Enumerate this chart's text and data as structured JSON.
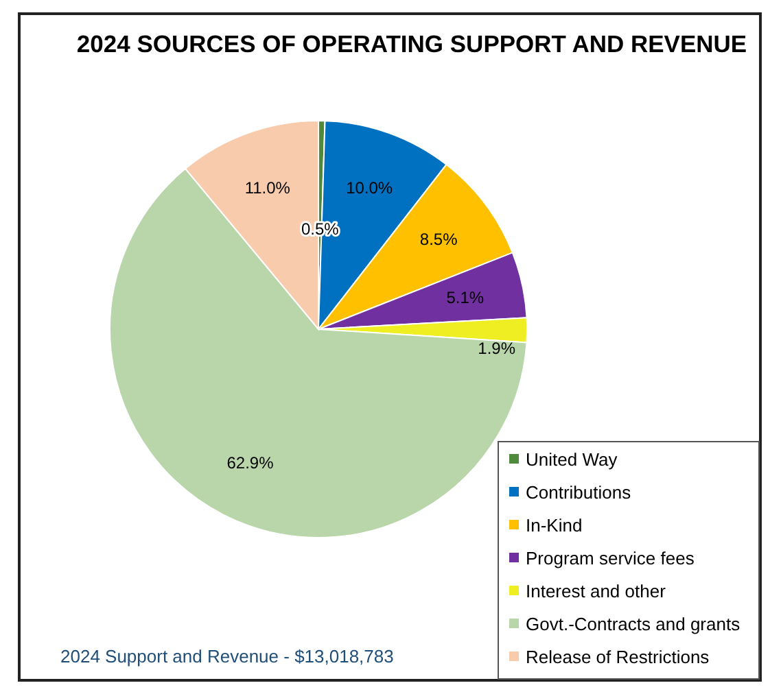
{
  "chart_data": {
    "type": "pie",
    "title": "2024 SOURCES OF OPERATING SUPPORT AND REVENUE",
    "categories": [
      "United Way",
      "Contributions",
      "In-Kind",
      "Program service fees",
      "Interest and other",
      "Govt.-Contracts and grants",
      "Release of Restrictions"
    ],
    "values": [
      0.5,
      10.0,
      8.5,
      5.1,
      1.9,
      62.9,
      11.0
    ],
    "colors": [
      "#4f8a3c",
      "#0070c0",
      "#ffc000",
      "#7030a0",
      "#eeee22",
      "#b9d5aa",
      "#f9cbad"
    ],
    "value_labels": [
      "0.5%",
      "10.0%",
      "8.5%",
      "5.1%",
      "1.9%",
      "62.9%",
      "11.0%"
    ],
    "legend": "bottom right",
    "annotations": [
      "2024 Support and Revenue - $13,018,783"
    ]
  }
}
